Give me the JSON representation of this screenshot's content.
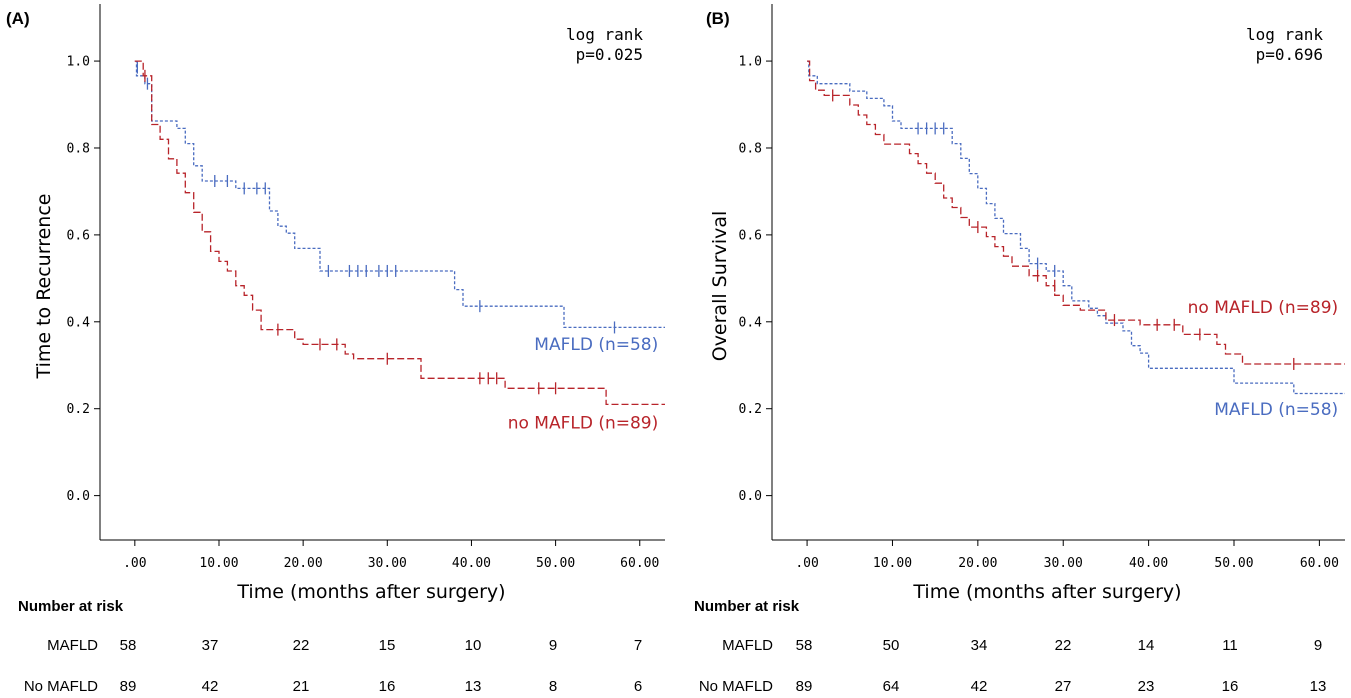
{
  "colors": {
    "mafld": "#4a6cc0",
    "no_mafld": "#b8242a"
  },
  "chart_data": [
    {
      "type": "line",
      "panel_label": "(A)",
      "ylabel": "Time to Recurrence",
      "xlabel": "Time (months after surgery)",
      "stat_line1": "log rank",
      "stat_line2": "p=0.025",
      "xlim": [
        -2,
        63
      ],
      "ylim": [
        -0.04,
        1.06
      ],
      "xticks": [
        0,
        10,
        20,
        30,
        40,
        50,
        60
      ],
      "xtick_labels": [
        ".00",
        "10.00",
        "20.00",
        "30.00",
        "40.00",
        "50.00",
        "60.00"
      ],
      "yticks": [
        0,
        0.2,
        0.4,
        0.6,
        0.8,
        1.0
      ],
      "ytick_labels": [
        "0.0",
        "0.2",
        "0.4",
        "0.6",
        "0.8",
        "1.0"
      ],
      "series": [
        {
          "name": "MAFLD (n=58)",
          "color_key": "mafld",
          "steps": [
            [
              0,
              1.0
            ],
            [
              0.2,
              0.966
            ],
            [
              1.2,
              0.948
            ],
            [
              2,
              0.862
            ],
            [
              5,
              0.845
            ],
            [
              6,
              0.81
            ],
            [
              7,
              0.759
            ],
            [
              8,
              0.724
            ],
            [
              12,
              0.707
            ],
            [
              16,
              0.655
            ],
            [
              17,
              0.62
            ],
            [
              18,
              0.604
            ],
            [
              19,
              0.569
            ],
            [
              22,
              0.517
            ],
            [
              38,
              0.474
            ],
            [
              39,
              0.436
            ],
            [
              51,
              0.387
            ],
            [
              63,
              0.387
            ]
          ],
          "censors": [
            [
              0.3,
              0.985
            ],
            [
              1.5,
              0.948
            ],
            [
              9.5,
              0.724
            ],
            [
              11,
              0.724
            ],
            [
              13,
              0.707
            ],
            [
              14.5,
              0.707
            ],
            [
              15.5,
              0.707
            ],
            [
              23,
              0.517
            ],
            [
              25.5,
              0.517
            ],
            [
              26.5,
              0.517
            ],
            [
              27.5,
              0.517
            ],
            [
              29,
              0.517
            ],
            [
              30,
              0.517
            ],
            [
              31,
              0.517
            ],
            [
              41,
              0.436
            ],
            [
              57,
              0.387
            ]
          ]
        },
        {
          "name": "no MAFLD (n=89)",
          "color_key": "no_mafld",
          "steps": [
            [
              0,
              1.0
            ],
            [
              1,
              0.966
            ],
            [
              2,
              0.854
            ],
            [
              3,
              0.82
            ],
            [
              4,
              0.775
            ],
            [
              5,
              0.742
            ],
            [
              6,
              0.697
            ],
            [
              7,
              0.652
            ],
            [
              8,
              0.607
            ],
            [
              9,
              0.562
            ],
            [
              10,
              0.539
            ],
            [
              11,
              0.517
            ],
            [
              12,
              0.483
            ],
            [
              13,
              0.461
            ],
            [
              14,
              0.427
            ],
            [
              15,
              0.382
            ],
            [
              19,
              0.36
            ],
            [
              20,
              0.348
            ],
            [
              25,
              0.326
            ],
            [
              26,
              0.315
            ],
            [
              34,
              0.27
            ],
            [
              44,
              0.247
            ],
            [
              56,
              0.21
            ],
            [
              63,
              0.21
            ]
          ],
          "censors": [
            [
              1.2,
              0.966
            ],
            [
              17,
              0.382
            ],
            [
              22,
              0.348
            ],
            [
              24,
              0.348
            ],
            [
              30,
              0.315
            ],
            [
              41,
              0.27
            ],
            [
              42,
              0.27
            ],
            [
              43,
              0.27
            ],
            [
              48,
              0.247
            ],
            [
              50,
              0.247
            ]
          ]
        }
      ],
      "annotations": [
        {
          "text": "MAFLD (n=58)",
          "x": 62.2,
          "y": 0.335,
          "color_key": "mafld"
        },
        {
          "text": "no MAFLD (n=89)",
          "x": 62.2,
          "y": 0.155,
          "color_key": "no_mafld"
        }
      ],
      "risk_table": {
        "title": "Number at risk",
        "rows": [
          {
            "label": "MAFLD",
            "values": [
              "58",
              "37",
              "22",
              "15",
              "10",
              "9",
              "7"
            ]
          },
          {
            "label": "No MAFLD",
            "values": [
              "89",
              "42",
              "21",
              "16",
              "13",
              "8",
              "6"
            ]
          }
        ]
      }
    },
    {
      "type": "line",
      "panel_label": "(B)",
      "ylabel": "Overall Survival",
      "xlabel": "Time (months after surgery)",
      "stat_line1": "log rank",
      "stat_line2": "p=0.696",
      "xlim": [
        -2,
        63
      ],
      "ylim": [
        -0.04,
        1.06
      ],
      "xticks": [
        0,
        10,
        20,
        30,
        40,
        50,
        60
      ],
      "xtick_labels": [
        ".00",
        "10.00",
        "20.00",
        "30.00",
        "40.00",
        "50.00",
        "60.00"
      ],
      "yticks": [
        0,
        0.2,
        0.4,
        0.6,
        0.8,
        1.0
      ],
      "ytick_labels": [
        "0.0",
        "0.2",
        "0.4",
        "0.6",
        "0.8",
        "1.0"
      ],
      "series": [
        {
          "name": "MAFLD (n=58)",
          "color_key": "mafld",
          "steps": [
            [
              0,
              1.0
            ],
            [
              0.2,
              0.966
            ],
            [
              1.2,
              0.948
            ],
            [
              5,
              0.931
            ],
            [
              7,
              0.914
            ],
            [
              9,
              0.897
            ],
            [
              10,
              0.862
            ],
            [
              11,
              0.845
            ],
            [
              17,
              0.81
            ],
            [
              18,
              0.776
            ],
            [
              19,
              0.741
            ],
            [
              20,
              0.707
            ],
            [
              21,
              0.672
            ],
            [
              22,
              0.638
            ],
            [
              23,
              0.603
            ],
            [
              25,
              0.569
            ],
            [
              26,
              0.534
            ],
            [
              28,
              0.517
            ],
            [
              30,
              0.483
            ],
            [
              31,
              0.448
            ],
            [
              33,
              0.431
            ],
            [
              34,
              0.414
            ],
            [
              35,
              0.397
            ],
            [
              37,
              0.379
            ],
            [
              38,
              0.345
            ],
            [
              39,
              0.328
            ],
            [
              40,
              0.293
            ],
            [
              50,
              0.259
            ],
            [
              57,
              0.235
            ],
            [
              63,
              0.235
            ]
          ],
          "censors": [
            [
              13,
              0.845
            ],
            [
              14,
              0.845
            ],
            [
              15,
              0.845
            ],
            [
              16,
              0.845
            ],
            [
              27,
              0.534
            ],
            [
              29,
              0.517
            ]
          ]
        },
        {
          "name": "no MAFLD (n=89)",
          "color_key": "no_mafld",
          "steps": [
            [
              0,
              1.0
            ],
            [
              0.3,
              0.955
            ],
            [
              1,
              0.933
            ],
            [
              2,
              0.921
            ],
            [
              5,
              0.899
            ],
            [
              6,
              0.876
            ],
            [
              7,
              0.854
            ],
            [
              8,
              0.831
            ],
            [
              9,
              0.809
            ],
            [
              12,
              0.787
            ],
            [
              13,
              0.764
            ],
            [
              14,
              0.742
            ],
            [
              15,
              0.719
            ],
            [
              16,
              0.685
            ],
            [
              17,
              0.663
            ],
            [
              18,
              0.64
            ],
            [
              19,
              0.618
            ],
            [
              21,
              0.596
            ],
            [
              22,
              0.573
            ],
            [
              23,
              0.551
            ],
            [
              24,
              0.528
            ],
            [
              26,
              0.506
            ],
            [
              28,
              0.483
            ],
            [
              29,
              0.461
            ],
            [
              30,
              0.438
            ],
            [
              32,
              0.427
            ],
            [
              35,
              0.404
            ],
            [
              39,
              0.393
            ],
            [
              44,
              0.371
            ],
            [
              48,
              0.348
            ],
            [
              49,
              0.326
            ],
            [
              51,
              0.303
            ],
            [
              63,
              0.303
            ]
          ],
          "censors": [
            [
              3,
              0.921
            ],
            [
              20,
              0.618
            ],
            [
              27,
              0.506
            ],
            [
              29,
              0.483
            ],
            [
              36,
              0.404
            ],
            [
              41,
              0.393
            ],
            [
              43,
              0.393
            ],
            [
              46,
              0.371
            ],
            [
              57,
              0.303
            ]
          ]
        }
      ],
      "annotations": [
        {
          "text": "no MAFLD (n=89)",
          "x": 62.2,
          "y": 0.42,
          "color_key": "no_mafld"
        },
        {
          "text": "MAFLD (n=58)",
          "x": 62.2,
          "y": 0.185,
          "color_key": "mafld"
        }
      ],
      "risk_table": {
        "title": "Number at risk",
        "rows": [
          {
            "label": "MAFLD",
            "values": [
              "58",
              "50",
              "34",
              "22",
              "14",
              "11",
              "9"
            ]
          },
          {
            "label": "No MAFLD",
            "values": [
              "89",
              "64",
              "42",
              "27",
              "23",
              "16",
              "13"
            ]
          }
        ]
      }
    }
  ]
}
